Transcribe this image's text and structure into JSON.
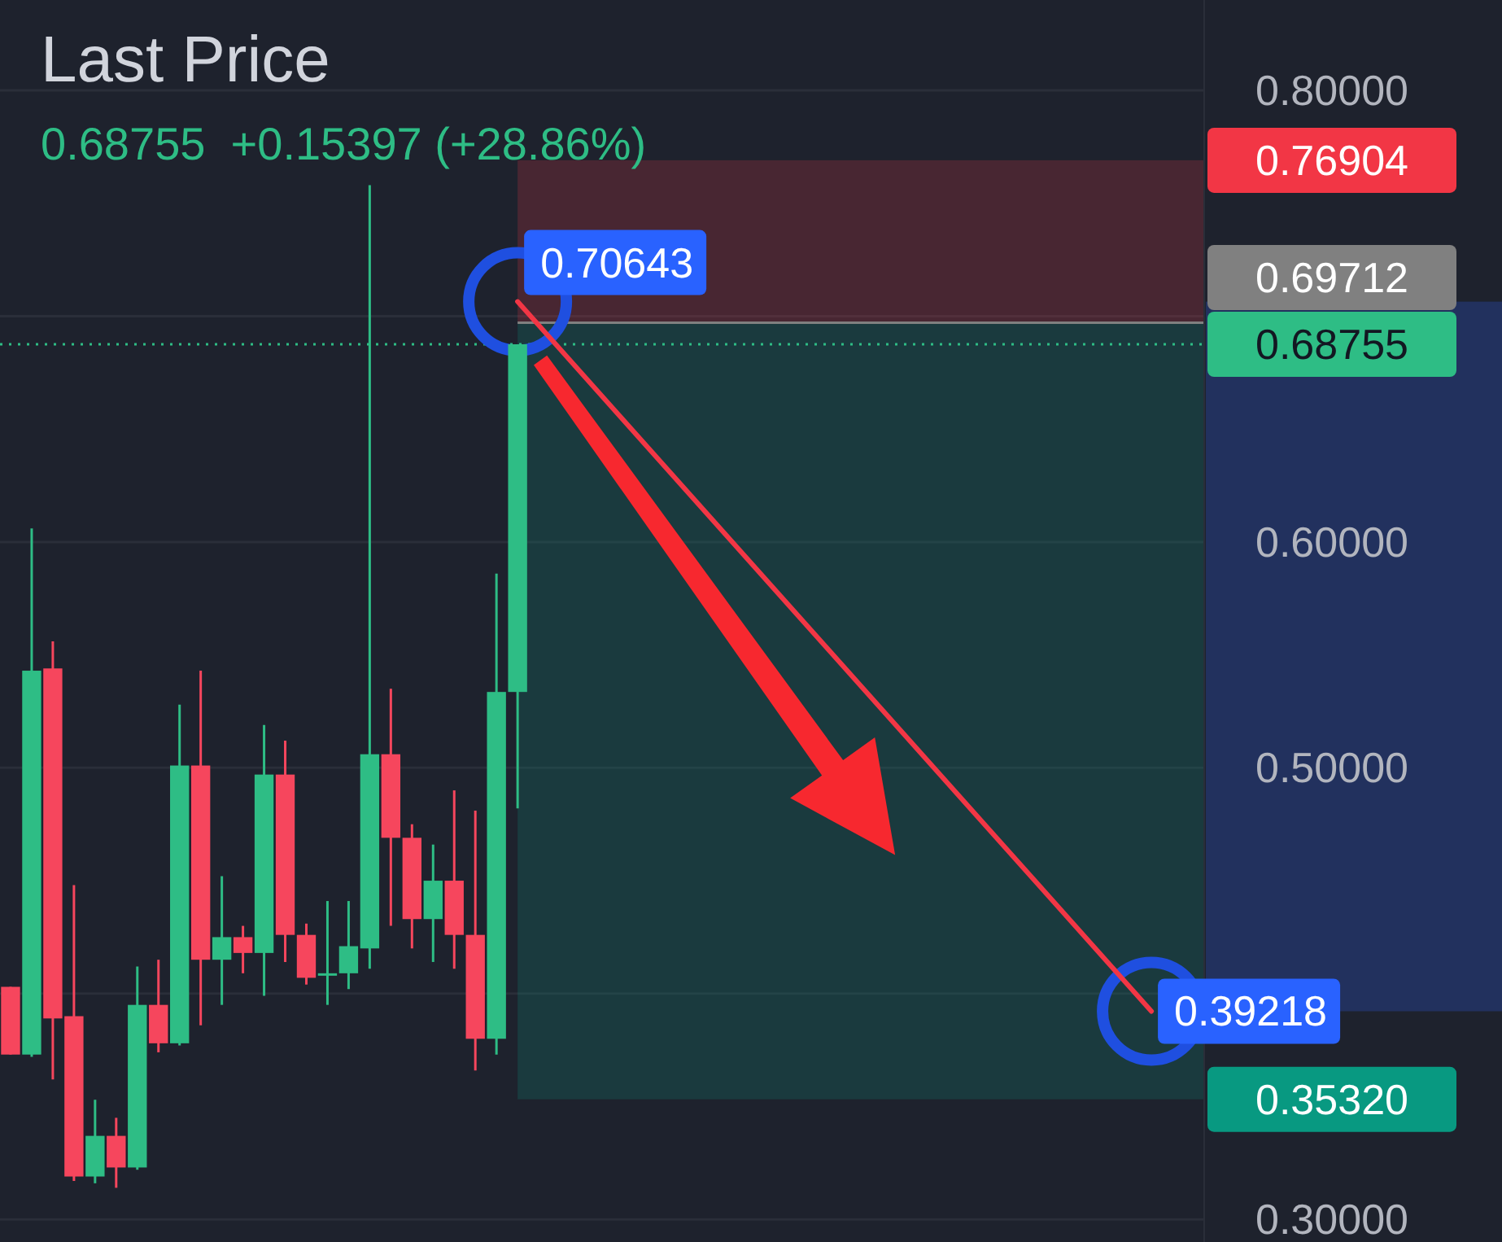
{
  "chart_data": {
    "type": "candlestick",
    "title": "Last Price",
    "subtitle": "0.68755  +0.15397 (+28.86%)",
    "categories": [
      null,
      null,
      null,
      null,
      null,
      null,
      null,
      null,
      null,
      null,
      null,
      null,
      null,
      null,
      null,
      null,
      null,
      null,
      null,
      null,
      null,
      null,
      null,
      null,
      null,
      null,
      null,
      null,
      null,
      null,
      null,
      null,
      null,
      null,
      null,
      null,
      null,
      null,
      null,
      null,
      null,
      null,
      null,
      null,
      null,
      null,
      null,
      null,
      null,
      null,
      null,
      null,
      null,
      null,
      null,
      null,
      null
    ],
    "ohlc": [
      [
        0.403,
        0.403,
        0.373,
        0.373
      ],
      [
        0.373,
        0.606,
        0.372,
        0.543
      ],
      [
        0.544,
        0.556,
        0.362,
        0.389
      ],
      [
        0.39,
        0.448,
        0.317,
        0.319
      ],
      [
        0.319,
        0.353,
        0.316,
        0.337
      ],
      [
        0.337,
        0.345,
        0.314,
        0.323
      ],
      [
        0.323,
        0.412,
        0.322,
        0.395
      ],
      [
        0.395,
        0.415,
        0.374,
        0.378
      ],
      [
        0.378,
        0.528,
        0.377,
        0.501
      ],
      [
        0.501,
        0.543,
        0.386,
        0.415
      ],
      [
        0.415,
        0.452,
        0.395,
        0.425
      ],
      [
        0.425,
        0.43,
        0.409,
        0.418
      ],
      [
        0.418,
        0.519,
        0.399,
        0.497
      ],
      [
        0.497,
        0.512,
        0.414,
        0.426
      ],
      [
        0.426,
        0.431,
        0.404,
        0.407
      ],
      [
        0.409,
        0.441,
        0.395,
        0.409
      ],
      [
        0.409,
        0.441,
        0.402,
        0.421
      ],
      [
        0.42,
        0.758,
        0.411,
        0.506
      ],
      [
        0.506,
        0.535,
        0.43,
        0.469
      ],
      [
        0.469,
        0.475,
        0.42,
        0.433
      ],
      [
        0.433,
        0.466,
        0.414,
        0.45
      ],
      [
        0.45,
        0.49,
        0.411,
        0.426
      ],
      [
        0.426,
        0.481,
        0.366,
        0.38
      ],
      [
        0.38,
        0.586,
        0.373,
        0.53358
      ],
      [
        0.53358,
        0.68755,
        0.482,
        0.68755
      ],
      null,
      null,
      null,
      null,
      null,
      null,
      null,
      null,
      null,
      null,
      null,
      null,
      null,
      null,
      null,
      null,
      null,
      null,
      null,
      null,
      null,
      null,
      null,
      null,
      null,
      null,
      null,
      null,
      null,
      null,
      null,
      null
    ],
    "colors": [
      "#f6465d",
      "#2ebd85",
      "#f6465d",
      "#f6465d",
      "#2ebd85",
      "#f6465d",
      "#2ebd85",
      "#f6465d",
      "#2ebd85",
      "#f6465d",
      "#2ebd85",
      "#f6465d",
      "#2ebd85",
      "#f6465d",
      "#f6465d",
      "#2ebd85",
      "#2ebd85",
      "#2ebd85",
      "#f6465d",
      "#f6465d",
      "#2ebd85",
      "#f6465d",
      "#f6465d",
      "#2ebd85",
      "#2ebd85",
      null,
      null,
      null,
      null,
      null,
      null,
      null,
      null,
      null,
      null,
      null,
      null,
      null,
      null,
      null,
      null,
      null,
      null,
      null,
      null,
      null,
      null,
      null,
      null,
      null,
      null,
      null,
      null,
      null,
      null,
      null,
      null
    ],
    "series": [
      {
        "type": "line",
        "color": "#f23645",
        "values": [
          null,
          null,
          null,
          null,
          null,
          null,
          null,
          null,
          null,
          null,
          null,
          null,
          null,
          null,
          null,
          null,
          null,
          null,
          null,
          null,
          null,
          null,
          null,
          null,
          0.70643,
          null,
          null,
          null,
          null,
          null,
          null,
          null,
          null,
          null,
          null,
          null,
          null,
          null,
          null,
          null,
          null,
          null,
          null,
          null,
          null,
          null,
          null,
          null,
          null,
          null,
          null,
          null,
          null,
          null,
          0.39218,
          null,
          null
        ],
        "value_labels": [
          null,
          null,
          null,
          null,
          null,
          null,
          null,
          null,
          null,
          null,
          null,
          null,
          null,
          null,
          null,
          null,
          null,
          null,
          null,
          null,
          null,
          null,
          null,
          null,
          "0.70643",
          null,
          null,
          null,
          null,
          null,
          null,
          null,
          null,
          null,
          null,
          null,
          null,
          null,
          null,
          null,
          null,
          null,
          null,
          null,
          null,
          null,
          null,
          null,
          null,
          null,
          null,
          null,
          null,
          null,
          "0.39218",
          null,
          null
        ]
      }
    ],
    "ylim": [
      0.29,
      0.84
    ],
    "yticks": [
      {
        "value": 0.3,
        "label": "0.30000"
      },
      {
        "value": 0.4,
        "label": null
      },
      {
        "value": 0.5,
        "label": "0.50000"
      },
      {
        "value": 0.6,
        "label": "0.60000"
      },
      {
        "value": 0.7,
        "label": null
      },
      {
        "value": 0.8,
        "label": "0.80000"
      }
    ],
    "grid": "y",
    "tick_labels": "y",
    "bands": [
      {
        "axis": "y",
        "from": 0.76904,
        "to": 0.69712,
        "label": "0.76904",
        "color": "#f23645"
      },
      {
        "axis": "y",
        "from": 0.3532,
        "to": 0.69712,
        "label": "0.35320",
        "color": "#089981"
      }
    ],
    "ref_lines": [
      {
        "axis": "y",
        "value": 0.69712,
        "label": "0.69712",
        "color": "#808080"
      },
      {
        "axis": "y",
        "value": 0.68755,
        "label": "0.68755",
        "color": "#2ebd85",
        "line_style": "dotted"
      }
    ]
  }
}
